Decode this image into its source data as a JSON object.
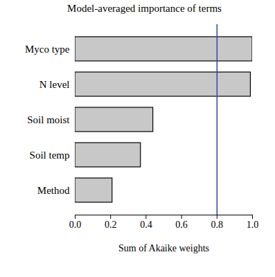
{
  "chart_data": {
    "type": "bar",
    "orientation": "horizontal",
    "title": "Model-averaged importance of terms",
    "x_label": "Sum of Akaike weights",
    "categories": [
      "Myco type",
      "N level",
      "Soil moist",
      "Soil temp",
      "Method"
    ],
    "values": [
      1.0,
      0.99,
      0.44,
      0.37,
      0.21
    ],
    "color": "#c8c8c8",
    "xlim": [
      0,
      1.0
    ],
    "xticks": [
      {
        "value": 0,
        "label": "0.0"
      },
      0.2,
      0.4,
      0.6,
      0.8,
      {
        "value": 1.0,
        "label": "1.0"
      }
    ],
    "reference_lines": [
      {
        "value": 0.8,
        "color": "#3f4aa6"
      }
    ],
    "grid": false
  }
}
